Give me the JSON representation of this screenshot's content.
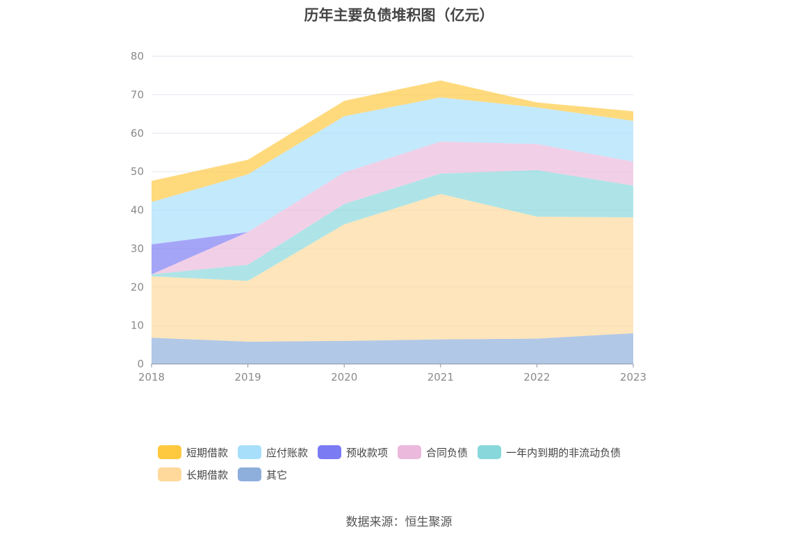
{
  "chart_data": {
    "type": "area",
    "stacked": true,
    "title": "历年主要负债堆积图（亿元）",
    "categories": [
      "2018",
      "2019",
      "2020",
      "2021",
      "2022",
      "2023"
    ],
    "y_ticks": [
      "0",
      "10",
      "20",
      "30",
      "40",
      "50",
      "60",
      "70",
      "80"
    ],
    "ylim": [
      0,
      80
    ],
    "grid": true,
    "legend_position": "bottom",
    "series": [
      {
        "name": "其它",
        "color": "#8eaedc",
        "values": [
          6.8,
          5.8,
          6.0,
          6.4,
          6.6,
          8.0
        ]
      },
      {
        "name": "长期借款",
        "color": "#fed99b",
        "values": [
          16.0,
          15.8,
          30.3,
          37.8,
          31.7,
          30.1
        ]
      },
      {
        "name": "一年内到期的非流动负债",
        "color": "#88d7db",
        "values": [
          0.5,
          4.2,
          5.3,
          5.3,
          12.1,
          8.3
        ]
      },
      {
        "name": "合同负债",
        "color": "#eab9db",
        "values": [
          0,
          8.5,
          8.2,
          8.3,
          6.8,
          6.2
        ]
      },
      {
        "name": "预收款项",
        "color": "#7b7bf4",
        "values": [
          7.8,
          0,
          0,
          0,
          0,
          0
        ]
      },
      {
        "name": "应付账款",
        "color": "#a7dffa",
        "values": [
          11.0,
          15.0,
          14.6,
          11.5,
          9.5,
          10.6
        ]
      },
      {
        "name": "短期借款",
        "color": "#ffc93f",
        "values": [
          5.5,
          3.8,
          4.0,
          4.4,
          1.3,
          2.5
        ]
      }
    ]
  },
  "legend": [
    {
      "label": "短期借款",
      "color": "#ffc93f"
    },
    {
      "label": "应付账款",
      "color": "#a7dffa"
    },
    {
      "label": "预收款项",
      "color": "#7b7bf4"
    },
    {
      "label": "合同负债",
      "color": "#eab9db"
    },
    {
      "label": "一年内到期的非流动负债",
      "color": "#88d7db"
    },
    {
      "label": "长期借款",
      "color": "#fed99b"
    },
    {
      "label": "其它",
      "color": "#8eaedc"
    }
  ],
  "source": "数据来源：恒生聚源"
}
